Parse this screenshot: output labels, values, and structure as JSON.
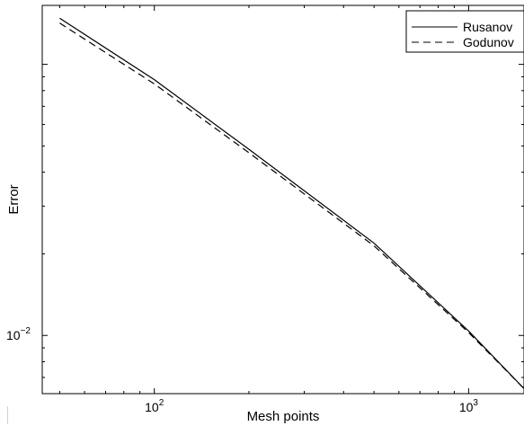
{
  "chart_data": {
    "type": "line",
    "xlabel": "Mesh points",
    "ylabel": "Error",
    "xscale": "log",
    "yscale": "log",
    "xlim": [
      44,
      1500
    ],
    "ylim": [
      0.0061,
      0.165
    ],
    "x_ticks": [
      {
        "value": 100,
        "base": "10",
        "exp": "2"
      },
      {
        "value": 1000,
        "base": "10",
        "exp": "3"
      }
    ],
    "y_ticks": [
      {
        "value": 0.01,
        "base": "10",
        "exp": "−2"
      }
    ],
    "grid": false,
    "legend_position": "top-right",
    "series": [
      {
        "name": "Rusanov",
        "style": "solid",
        "color": "#000000",
        "x": [
          50,
          100,
          200,
          500,
          1000,
          1500
        ],
        "y": [
          0.148,
          0.0878,
          0.0486,
          0.0219,
          0.01038,
          0.00637
        ]
      },
      {
        "name": "Godunov",
        "style": "dashed",
        "color": "#000000",
        "x": [
          50,
          100,
          200,
          500,
          1000,
          1500
        ],
        "y": [
          0.142,
          0.0847,
          0.0472,
          0.0214,
          0.01025,
          0.00637
        ]
      }
    ]
  }
}
